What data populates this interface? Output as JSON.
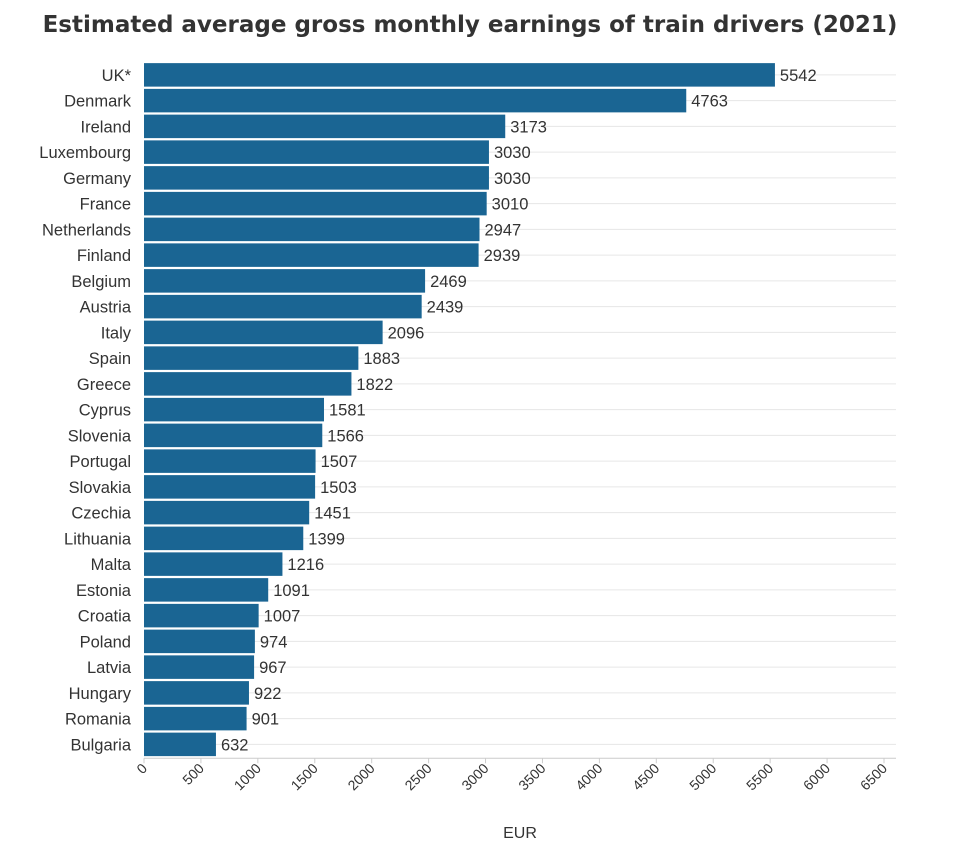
{
  "chart_data": {
    "type": "bar",
    "orientation": "horizontal",
    "title": "Estimated average gross monthly earnings of train drivers (2021)",
    "xlabel": "EUR",
    "ylabel": "",
    "xlim": [
      0,
      6500
    ],
    "xticks": [
      0,
      500,
      1000,
      1500,
      2000,
      2500,
      3000,
      3500,
      4000,
      4500,
      5000,
      5500,
      6000,
      6500
    ],
    "grid": true,
    "categories": [
      "UK*",
      "Denmark",
      "Ireland",
      "Luxembourg",
      "Germany",
      "France",
      "Netherlands",
      "Finland",
      "Belgium",
      "Austria",
      "Italy",
      "Spain",
      "Greece",
      "Cyprus",
      "Slovenia",
      "Portugal",
      "Slovakia",
      "Czechia",
      "Lithuania",
      "Malta",
      "Estonia",
      "Croatia",
      "Poland",
      "Latvia",
      "Hungary",
      "Romania",
      "Bulgaria"
    ],
    "values": [
      5542,
      4763,
      3173,
      3030,
      3030,
      3010,
      2947,
      2939,
      2469,
      2439,
      2096,
      1883,
      1822,
      1581,
      1566,
      1507,
      1503,
      1451,
      1399,
      1216,
      1091,
      1007,
      974,
      967,
      922,
      901,
      632
    ],
    "bar_color": "#1a6593"
  }
}
